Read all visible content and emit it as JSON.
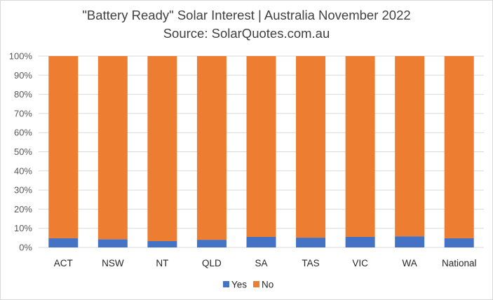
{
  "chart_data": {
    "type": "bar",
    "stacked": true,
    "title": "\"Battery Ready\" Solar Interest | Australia November 2022",
    "subtitle": "Source: SolarQuotes.com.au",
    "categories": [
      "ACT",
      "NSW",
      "NT",
      "QLD",
      "SA",
      "TAS",
      "VIC",
      "WA",
      "National"
    ],
    "series": [
      {
        "name": "Yes",
        "color": "#4472c4",
        "values": [
          0.048,
          0.043,
          0.033,
          0.04,
          0.055,
          0.051,
          0.055,
          0.058,
          0.048
        ]
      },
      {
        "name": "No",
        "color": "#ed7d31",
        "values": [
          0.952,
          0.957,
          0.967,
          0.96,
          0.945,
          0.949,
          0.945,
          0.942,
          0.952
        ]
      }
    ],
    "y_ticks": [
      "0%",
      "10%",
      "20%",
      "30%",
      "40%",
      "50%",
      "60%",
      "70%",
      "80%",
      "90%",
      "100%"
    ],
    "ylim": [
      0,
      1
    ],
    "grid": true,
    "legend_position": "bottom"
  }
}
